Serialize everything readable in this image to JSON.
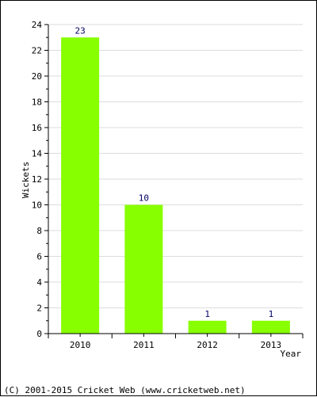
{
  "chart_data": {
    "type": "bar",
    "categories": [
      "2010",
      "2011",
      "2012",
      "2013"
    ],
    "values": [
      23,
      10,
      1,
      1
    ],
    "data_labels": [
      "23",
      "10",
      "1",
      "1"
    ],
    "xlabel": "Year",
    "ylabel": "Wickets",
    "ylim": [
      0,
      24
    ],
    "y_ticks": [
      0,
      2,
      4,
      6,
      8,
      10,
      12,
      14,
      16,
      18,
      20,
      22,
      24
    ],
    "grid": true,
    "legend": "none",
    "bar_color": "#88ff00"
  },
  "footer": {
    "copyright": "(C) 2001-2015 Cricket Web (www.cricketweb.net)"
  }
}
